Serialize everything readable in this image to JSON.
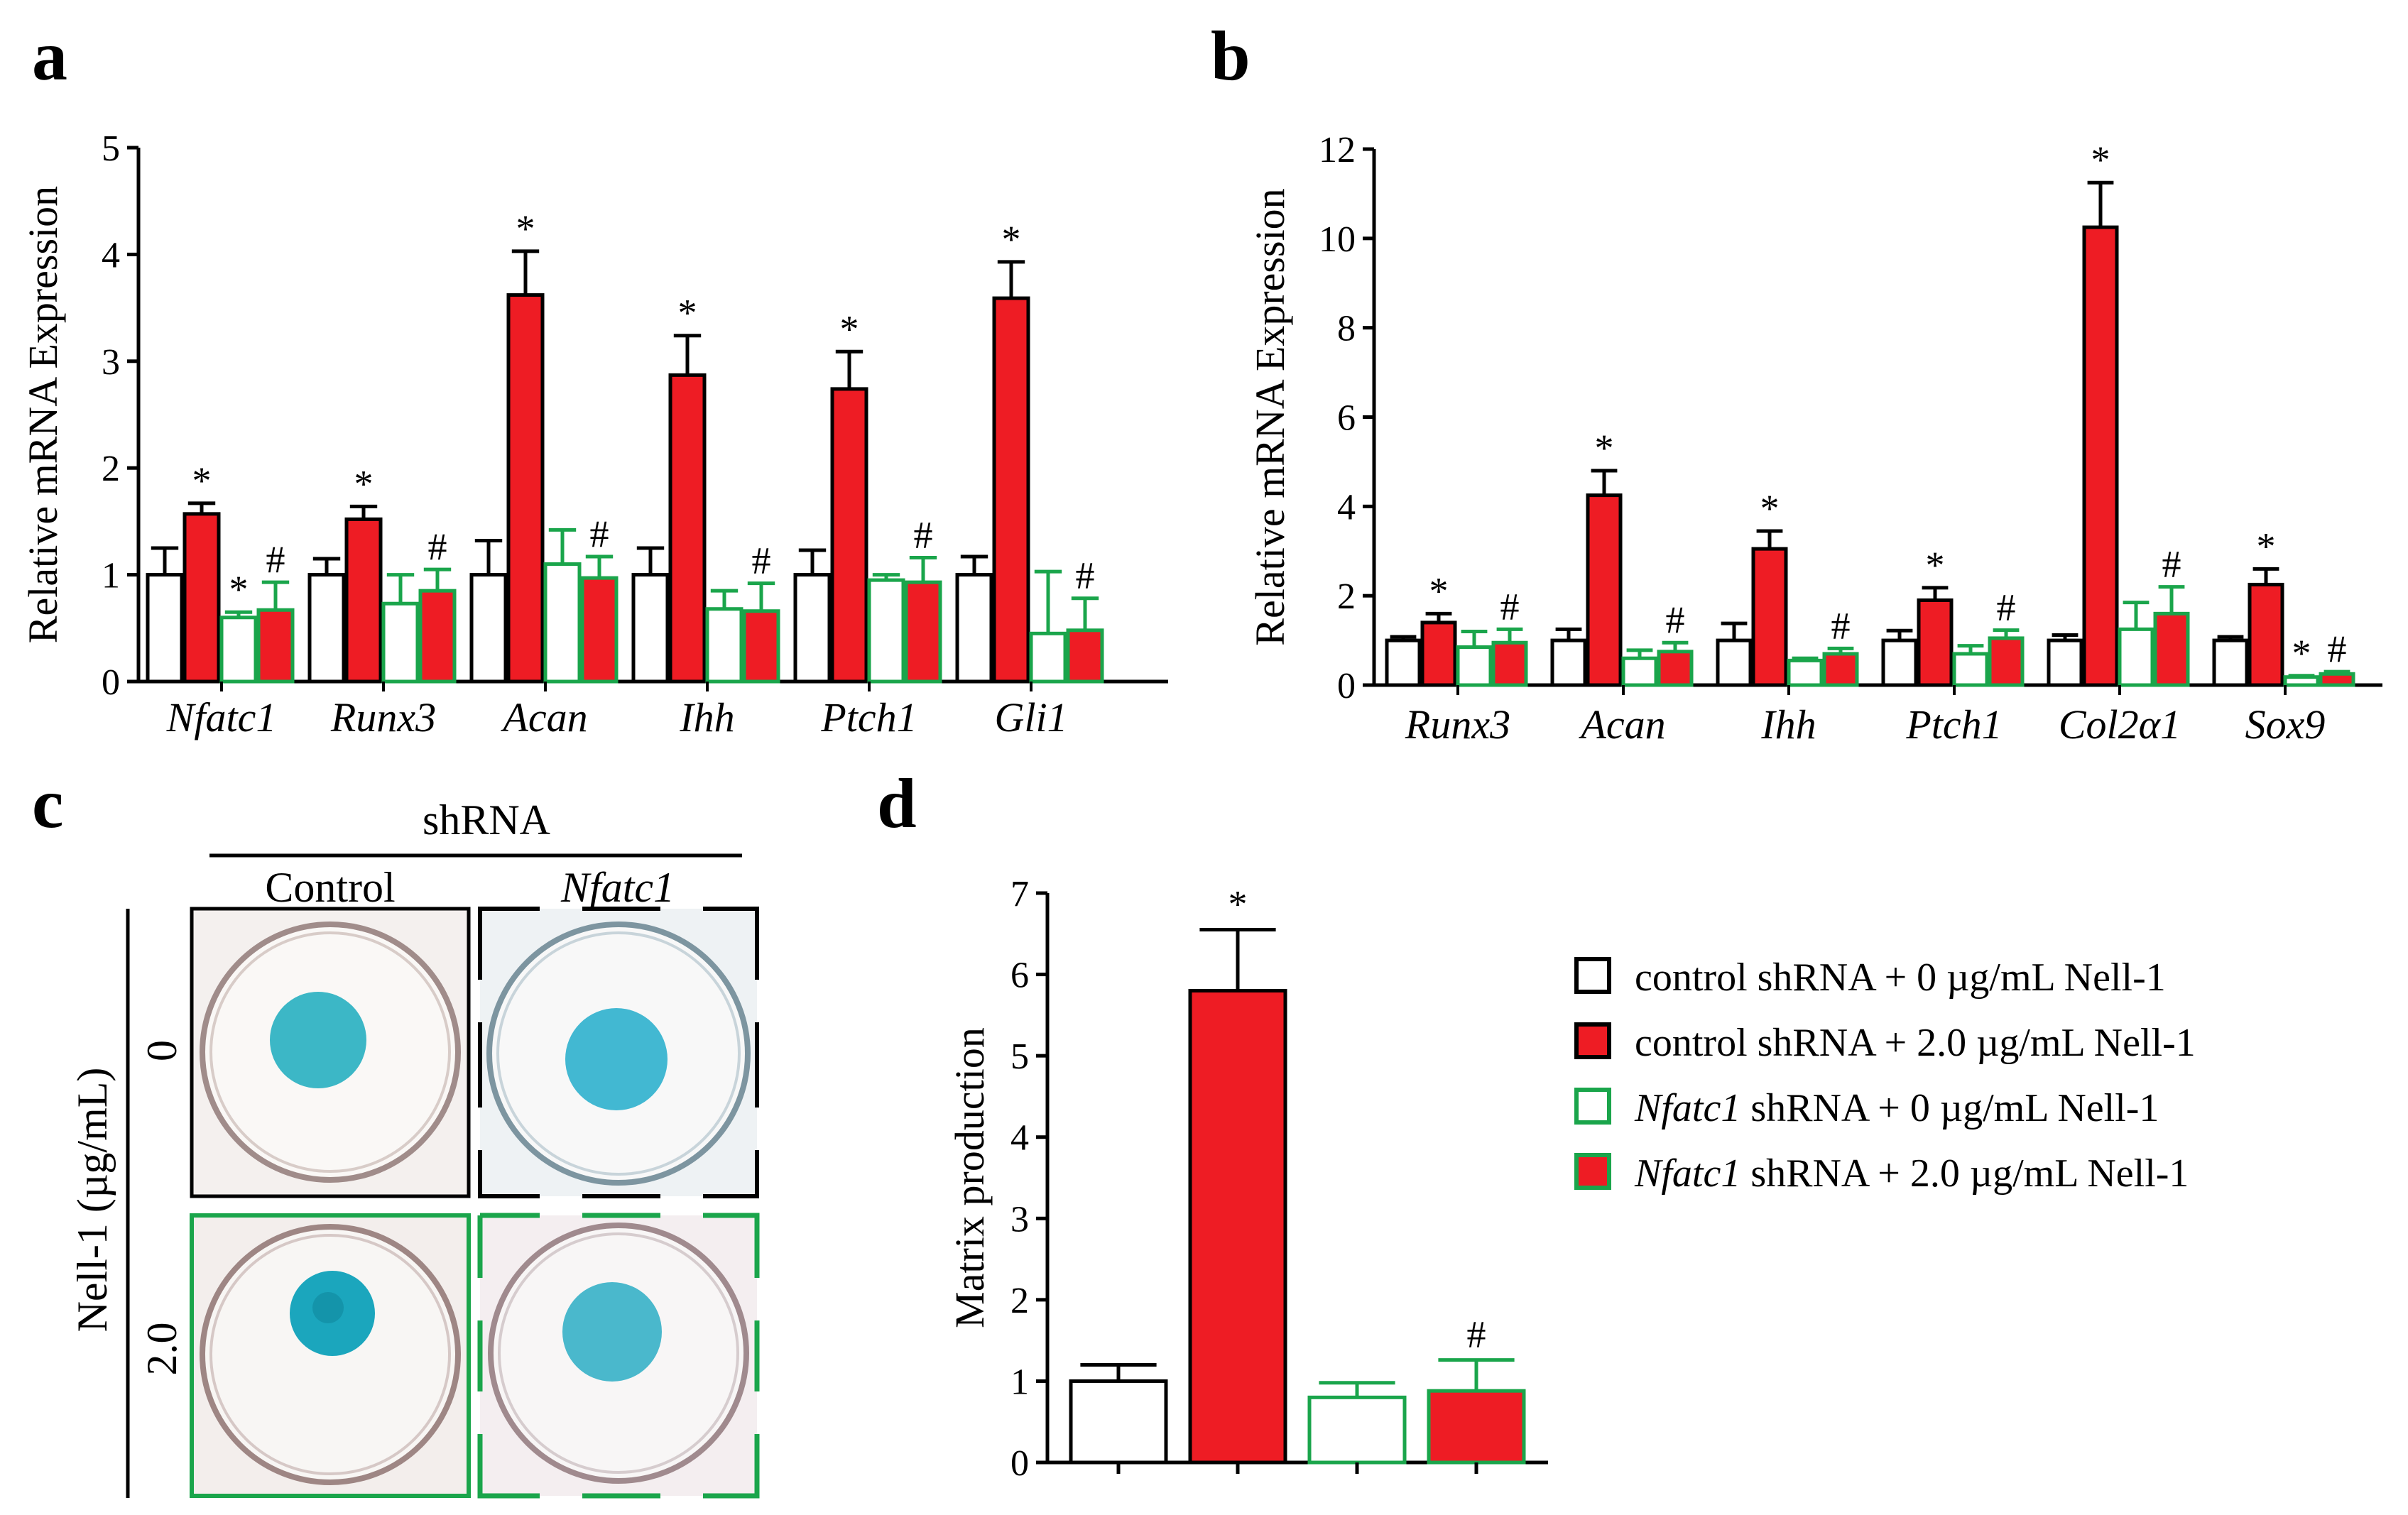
{
  "panel_labels": {
    "a": "a",
    "b": "b",
    "c": "c",
    "d": "d"
  },
  "colors": {
    "control_edge": "#000000",
    "red_fill": "#ee1c24",
    "green_edge": "#1aa54b",
    "dish_blue": "#3cb7c6"
  },
  "legend": [
    {
      "prefix": "control",
      "italic": false,
      "suffix": " shRNA + 0 µg/mL Nell-1",
      "style": "ctrl0"
    },
    {
      "prefix": "control",
      "italic": false,
      "suffix": " shRNA + 2.0 µg/mL Nell-1",
      "style": "ctrl2"
    },
    {
      "prefix": "Nfatc1",
      "italic": true,
      "suffix": " shRNA + 0 µg/mL Nell-1",
      "style": "kd0"
    },
    {
      "prefix": "Nfatc1",
      "italic": true,
      "suffix": " shRNA + 2.0 µg/mL Nell-1",
      "style": "kd2"
    }
  ],
  "panel_c": {
    "top_label": "shRNA",
    "col_labels": [
      "Control",
      "Nfatc1"
    ],
    "row_axis_label": "Nell-1 (µg/mL)",
    "row_labels": [
      "0",
      "2.0"
    ]
  },
  "chart_data": [
    {
      "id": "a",
      "type": "bar",
      "ylabel": "Relative mRNA Expression",
      "ylim": [
        0,
        5
      ],
      "yticks": [
        0,
        1,
        2,
        3,
        4,
        5
      ],
      "categories": [
        "Nfatc1",
        "Runx3",
        "Acan",
        "Ihh",
        "Ptch1",
        "Gli1"
      ],
      "series": [
        {
          "values": [
            1.0,
            1.0,
            1.0,
            1.0,
            1.0,
            1.0
          ],
          "errors": [
            0.25,
            0.15,
            0.32,
            0.25,
            0.23,
            0.17
          ],
          "style": "ctrl0"
        },
        {
          "values": [
            1.57,
            1.52,
            3.62,
            2.87,
            2.74,
            3.59
          ],
          "errors": [
            0.1,
            0.12,
            0.41,
            0.37,
            0.35,
            0.34
          ],
          "style": "ctrl2"
        },
        {
          "values": [
            0.6,
            0.73,
            1.1,
            0.68,
            0.95,
            0.45
          ],
          "errors": [
            0.05,
            0.27,
            0.32,
            0.17,
            0.05,
            0.58
          ],
          "style": "kd0"
        },
        {
          "values": [
            0.67,
            0.85,
            0.97,
            0.66,
            0.93,
            0.48
          ],
          "errors": [
            0.26,
            0.2,
            0.2,
            0.26,
            0.23,
            0.3
          ],
          "style": "kd2"
        }
      ],
      "annotations": [
        {
          "cat": 0,
          "series": 1,
          "text": "*"
        },
        {
          "cat": 0,
          "series": 2,
          "text": "*"
        },
        {
          "cat": 0,
          "series": 3,
          "text": "#"
        },
        {
          "cat": 1,
          "series": 1,
          "text": "*"
        },
        {
          "cat": 1,
          "series": 3,
          "text": "#"
        },
        {
          "cat": 2,
          "series": 1,
          "text": "*"
        },
        {
          "cat": 2,
          "series": 3,
          "text": "#"
        },
        {
          "cat": 3,
          "series": 1,
          "text": "*"
        },
        {
          "cat": 3,
          "series": 3,
          "text": "#"
        },
        {
          "cat": 4,
          "series": 1,
          "text": "*"
        },
        {
          "cat": 4,
          "series": 3,
          "text": "#"
        },
        {
          "cat": 5,
          "series": 1,
          "text": "*"
        },
        {
          "cat": 5,
          "series": 3,
          "text": "#"
        }
      ]
    },
    {
      "id": "b",
      "type": "bar",
      "ylabel": "Relative mRNA Expression",
      "ylim": [
        0,
        12
      ],
      "yticks": [
        0,
        2,
        4,
        6,
        8,
        10,
        12
      ],
      "categories": [
        "Runx3",
        "Acan",
        "Ihh",
        "Ptch1",
        "Col2α1",
        "Sox9"
      ],
      "series": [
        {
          "values": [
            1.0,
            1.0,
            1.0,
            1.0,
            1.0,
            1.0
          ],
          "errors": [
            0.08,
            0.25,
            0.38,
            0.22,
            0.12,
            0.08
          ],
          "style": "ctrl0"
        },
        {
          "values": [
            1.4,
            4.25,
            3.05,
            1.9,
            10.25,
            2.25
          ],
          "errors": [
            0.2,
            0.55,
            0.4,
            0.28,
            1.0,
            0.35
          ],
          "style": "ctrl2"
        },
        {
          "values": [
            0.85,
            0.6,
            0.55,
            0.7,
            1.25,
            0.18
          ],
          "errors": [
            0.35,
            0.18,
            0.05,
            0.18,
            0.6,
            0.03
          ],
          "style": "kd0"
        },
        {
          "values": [
            0.95,
            0.75,
            0.7,
            1.05,
            1.6,
            0.25
          ],
          "errors": [
            0.3,
            0.2,
            0.12,
            0.18,
            0.6,
            0.05
          ],
          "style": "kd2"
        }
      ],
      "annotations": [
        {
          "cat": 0,
          "series": 1,
          "text": "*"
        },
        {
          "cat": 0,
          "series": 3,
          "text": "#"
        },
        {
          "cat": 1,
          "series": 1,
          "text": "*"
        },
        {
          "cat": 1,
          "series": 3,
          "text": "#"
        },
        {
          "cat": 2,
          "series": 1,
          "text": "*"
        },
        {
          "cat": 2,
          "series": 3,
          "text": "#"
        },
        {
          "cat": 3,
          "series": 1,
          "text": "*"
        },
        {
          "cat": 3,
          "series": 3,
          "text": "#"
        },
        {
          "cat": 4,
          "series": 1,
          "text": "*"
        },
        {
          "cat": 4,
          "series": 3,
          "text": "#"
        },
        {
          "cat": 5,
          "series": 1,
          "text": "*"
        },
        {
          "cat": 5,
          "series": 2,
          "text": "*"
        },
        {
          "cat": 5,
          "series": 3,
          "text": "#"
        }
      ]
    },
    {
      "id": "d",
      "type": "bar",
      "ylabel": "Matrix production",
      "ylim": [
        0,
        7
      ],
      "yticks": [
        0,
        1,
        2,
        3,
        4,
        5,
        6,
        7
      ],
      "categories": [
        "",
        "",
        "",
        ""
      ],
      "values": [
        1.0,
        5.8,
        0.8,
        0.88
      ],
      "errors": [
        0.2,
        0.75,
        0.18,
        0.38
      ],
      "styles": [
        "ctrl0",
        "ctrl2",
        "kd0",
        "kd2"
      ],
      "annotations": [
        {
          "bar": 1,
          "text": "*"
        },
        {
          "bar": 3,
          "text": "#"
        }
      ]
    }
  ]
}
